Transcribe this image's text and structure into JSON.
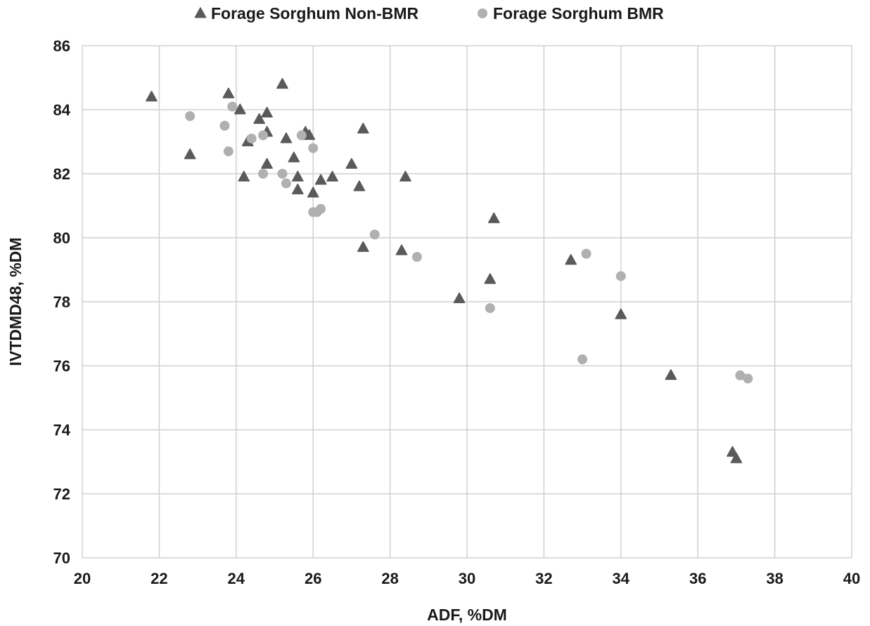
{
  "chart_data": {
    "type": "scatter",
    "title": "",
    "xlabel": "ADF, %DM",
    "ylabel": "IVTDMD48, %DM",
    "xlim": [
      20,
      40
    ],
    "ylim": [
      70,
      86
    ],
    "x_ticks": [
      20,
      22,
      24,
      26,
      28,
      30,
      32,
      34,
      36,
      38,
      40
    ],
    "y_ticks": [
      70,
      72,
      74,
      76,
      78,
      80,
      82,
      84,
      86
    ],
    "grid": true,
    "legend_position": "top",
    "series": [
      {
        "name": "Forage Sorghum Non-BMR",
        "marker": "triangle",
        "color": "#5a5a5a",
        "points": [
          [
            21.8,
            84.4
          ],
          [
            22.8,
            82.6
          ],
          [
            23.8,
            84.5
          ],
          [
            24.1,
            84.0
          ],
          [
            24.3,
            83.0
          ],
          [
            24.6,
            83.7
          ],
          [
            24.8,
            83.9
          ],
          [
            24.8,
            83.3
          ],
          [
            24.8,
            82.3
          ],
          [
            24.2,
            81.9
          ],
          [
            25.2,
            84.8
          ],
          [
            25.3,
            83.1
          ],
          [
            25.5,
            82.5
          ],
          [
            25.6,
            81.9
          ],
          [
            25.6,
            81.5
          ],
          [
            25.8,
            83.3
          ],
          [
            25.9,
            83.2
          ],
          [
            26.0,
            81.4
          ],
          [
            26.2,
            81.8
          ],
          [
            26.5,
            81.9
          ],
          [
            27.0,
            82.3
          ],
          [
            27.2,
            81.6
          ],
          [
            27.3,
            83.4
          ],
          [
            28.4,
            81.9
          ],
          [
            27.3,
            79.7
          ],
          [
            28.3,
            79.6
          ],
          [
            29.8,
            78.1
          ],
          [
            30.6,
            78.7
          ],
          [
            30.7,
            80.6
          ],
          [
            32.7,
            79.3
          ],
          [
            34.0,
            77.6
          ],
          [
            35.3,
            75.7
          ],
          [
            36.9,
            73.3
          ],
          [
            37.0,
            73.1
          ]
        ]
      },
      {
        "name": "Forage Sorghum BMR",
        "marker": "circle",
        "color": "#b0b0b0",
        "points": [
          [
            22.8,
            83.8
          ],
          [
            23.7,
            83.5
          ],
          [
            23.8,
            82.7
          ],
          [
            23.9,
            84.1
          ],
          [
            24.4,
            83.1
          ],
          [
            24.7,
            83.2
          ],
          [
            24.7,
            82.0
          ],
          [
            25.2,
            82.0
          ],
          [
            25.3,
            81.7
          ],
          [
            25.7,
            83.2
          ],
          [
            26.0,
            82.8
          ],
          [
            26.0,
            80.8
          ],
          [
            26.1,
            80.8
          ],
          [
            26.2,
            80.9
          ],
          [
            27.6,
            80.1
          ],
          [
            28.7,
            79.4
          ],
          [
            30.6,
            77.8
          ],
          [
            33.0,
            76.2
          ],
          [
            33.1,
            79.5
          ],
          [
            34.0,
            78.8
          ],
          [
            37.1,
            75.7
          ],
          [
            37.3,
            75.6
          ]
        ]
      }
    ]
  }
}
